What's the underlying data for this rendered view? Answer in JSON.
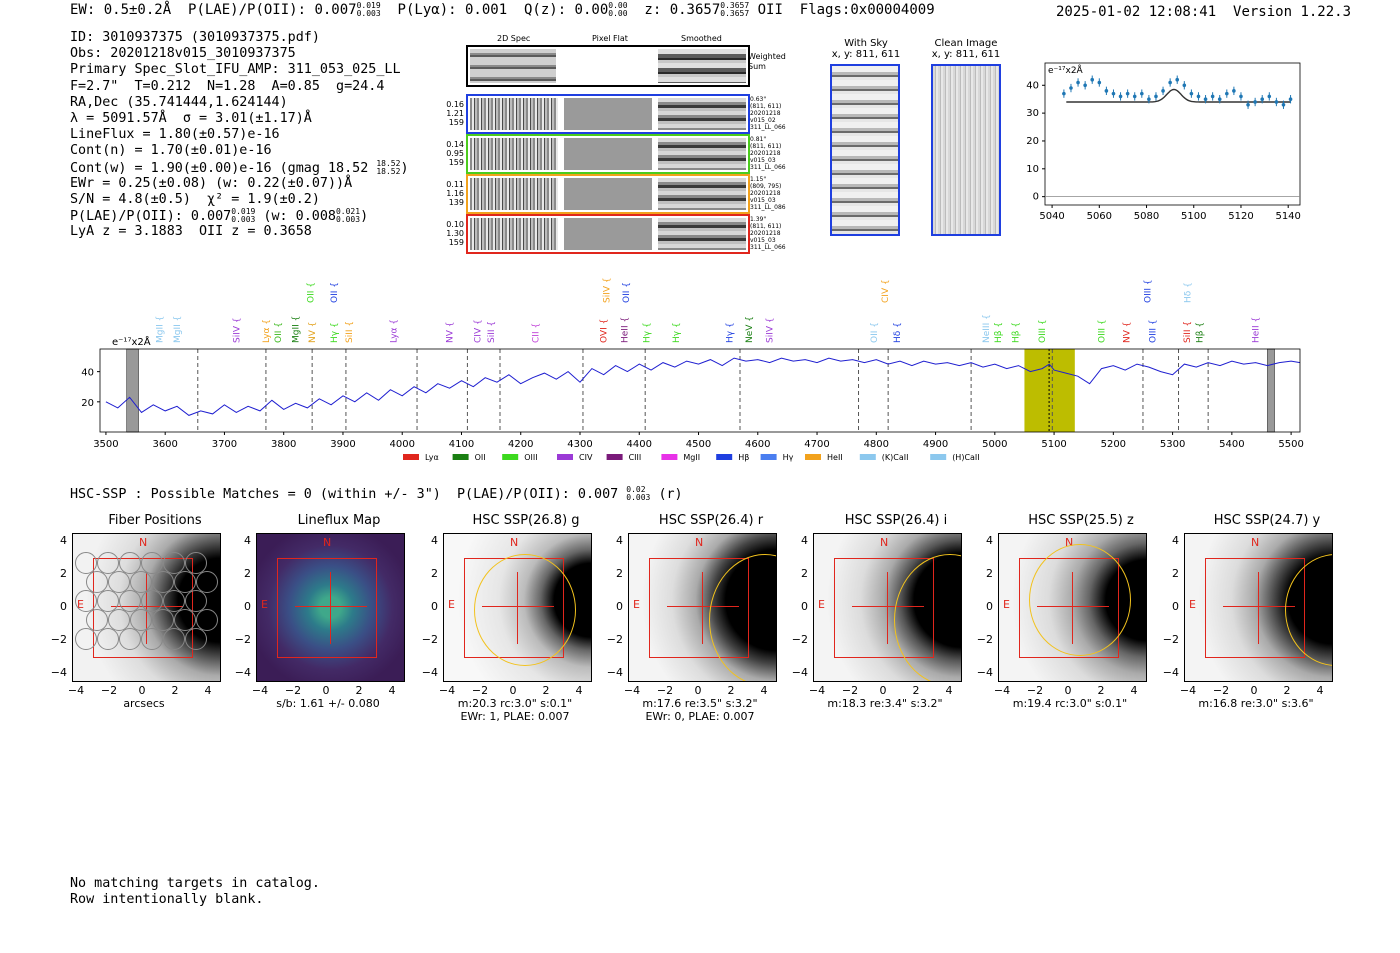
{
  "header": {
    "ew": "EW: 0.5±0.2Å",
    "plae_label": "P(LAE)/P(OII): 0.007",
    "plae_hi": "0.019",
    "plae_lo": "0.003",
    "plya": "P(Lyα): 0.001",
    "qz_label": "Q(z): 0.00",
    "qz_hi": "0.00",
    "qz_lo": "0.00",
    "z_label": "z: 0.3657",
    "z_hi": "0.3657",
    "z_lo": "0.3657",
    "z_line": "OII",
    "flags": "Flags:0x00004009",
    "datetime": "2025-01-02 12:08:41",
    "version": "Version 1.22.3"
  },
  "info": {
    "id": "ID: 3010937375 (3010937375.pdf)",
    "obs": "Obs: 20201218v015_3010937375",
    "primary": "Primary Spec_Slot_IFU_AMP: 311_053_025_LL",
    "params": "F=2.7\"  T=0.212  N=1.28  A=0.85  g=24.4",
    "radec": "RA,Dec (35.741444,1.624144)",
    "lambda": "λ = 5091.57Å  σ = 3.01(±1.17)Å",
    "lineflux": "LineFlux = 1.80(±0.57)e-16",
    "contn": "Cont(n) = 1.70(±0.01)e-16",
    "contw": "Cont(w) = 1.90(±0.00)e-16 (gmag 18.52",
    "gmag_hi": "18.52",
    "gmag_lo": "18.52",
    "contw_end": ")",
    "ewr": "EWr = 0.25(±0.08) (w: 0.22(±0.07))Å",
    "sn": "S/N = 4.8(±0.5)  χ² = 1.9(±0.2)",
    "plae": "P(LAE)/P(OII): 0.007",
    "plae_hi": "0.019",
    "plae_lo": "0.003",
    "plae_w": "(w: 0.008",
    "plae_w_hi": "0.021",
    "plae_w_lo": "0.003",
    "plae_end": ")",
    "lya": "LyA z = 3.1883  OII z = 0.3658"
  },
  "cutouts": {
    "col_2d": "2D Spec",
    "col_flat": "Pixel Flat",
    "col_smooth": "Smoothed",
    "weighted_sum": "Weighted Sum",
    "rows": [
      {
        "vals": [
          "0.16",
          "1.21",
          "159"
        ],
        "notes": [
          "0.63\"",
          "(811, 611)",
          "20201218",
          "v015_02",
          "311_LL_066"
        ],
        "color": "#1f3fe0"
      },
      {
        "vals": [
          "0.14",
          "0.95",
          "159"
        ],
        "notes": [
          "0.81\"",
          "(811, 611)",
          "20201218",
          "v015_03",
          "311_LL_066"
        ],
        "color": "#4ccc1e"
      },
      {
        "vals": [
          "0.11",
          "1.16",
          "139"
        ],
        "notes": [
          "1.15\"",
          "(809, 795)",
          "20201218",
          "v015_03",
          "311_LL_086"
        ],
        "color": "#f2a21d"
      },
      {
        "vals": [
          "0.10",
          "1.30",
          "159"
        ],
        "notes": [
          "1.39\"",
          "(811, 611)",
          "20201218",
          "v015_03",
          "311_LL_066"
        ],
        "color": "#e0261d"
      }
    ],
    "with_sky": "With Sky",
    "with_sky_xy": "x, y: 811, 611",
    "clean_image": "Clean Image",
    "clean_xy": "x, y: 811, 611"
  },
  "chart_data": [
    {
      "type": "scatter",
      "title": "",
      "ylabel_unit": "e⁻¹⁷x2Å",
      "xlim": [
        5037,
        5145
      ],
      "ylim": [
        -3,
        48
      ],
      "xticks": [
        5040,
        5060,
        5080,
        5100,
        5120,
        5140
      ],
      "yticks": [
        0,
        10,
        20,
        30,
        40
      ],
      "x": [
        5045,
        5048,
        5051,
        5054,
        5057,
        5060,
        5063,
        5066,
        5069,
        5072,
        5075,
        5078,
        5081,
        5084,
        5087,
        5090,
        5093,
        5096,
        5099,
        5102,
        5105,
        5108,
        5111,
        5114,
        5117,
        5120,
        5123,
        5126,
        5129,
        5132,
        5135,
        5138,
        5141
      ],
      "y": [
        37,
        39,
        41,
        40,
        42,
        41,
        38,
        37,
        36,
        37,
        36,
        37,
        35,
        36,
        38,
        41,
        42,
        40,
        37,
        36,
        35,
        36,
        35,
        37,
        38,
        36,
        33,
        34,
        35,
        36,
        34,
        33,
        35
      ],
      "model_continuum": 34.0,
      "model_peak": 38.5,
      "model_center": 5091.6,
      "model_sigma": 3.0
    },
    {
      "type": "line",
      "ylabel_unit": "e⁻¹⁷x2Å",
      "xlim": [
        3490,
        5515
      ],
      "ylim": [
        0,
        55
      ],
      "xticks": [
        3500,
        3600,
        3700,
        3800,
        3900,
        4000,
        4100,
        4200,
        4300,
        4400,
        4500,
        4600,
        4700,
        4800,
        4900,
        5000,
        5100,
        5200,
        5300,
        5400,
        5500
      ],
      "yticks": [
        20,
        40
      ],
      "highlight_range": [
        5050,
        5135
      ],
      "line_center": 5091.6,
      "masked_regions": [
        [
          3535,
          3555
        ],
        [
          5460,
          5472
        ]
      ],
      "spectrum": [
        [
          3500,
          20
        ],
        [
          3520,
          16
        ],
        [
          3540,
          23
        ],
        [
          3560,
          13
        ],
        [
          3580,
          18
        ],
        [
          3600,
          14
        ],
        [
          3620,
          17
        ],
        [
          3640,
          11
        ],
        [
          3660,
          14
        ],
        [
          3680,
          12
        ],
        [
          3700,
          18
        ],
        [
          3720,
          13
        ],
        [
          3740,
          17
        ],
        [
          3760,
          14
        ],
        [
          3780,
          21
        ],
        [
          3800,
          15
        ],
        [
          3820,
          19
        ],
        [
          3840,
          16
        ],
        [
          3860,
          22
        ],
        [
          3880,
          18
        ],
        [
          3900,
          24
        ],
        [
          3920,
          20
        ],
        [
          3940,
          26
        ],
        [
          3960,
          21
        ],
        [
          3980,
          28
        ],
        [
          4000,
          24
        ],
        [
          4020,
          30
        ],
        [
          4040,
          26
        ],
        [
          4060,
          32
        ],
        [
          4080,
          29
        ],
        [
          4100,
          34
        ],
        [
          4120,
          30
        ],
        [
          4140,
          36
        ],
        [
          4160,
          33
        ],
        [
          4180,
          38
        ],
        [
          4200,
          32
        ],
        [
          4220,
          36
        ],
        [
          4240,
          39
        ],
        [
          4260,
          35
        ],
        [
          4280,
          40
        ],
        [
          4300,
          33
        ],
        [
          4320,
          42
        ],
        [
          4340,
          38
        ],
        [
          4360,
          44
        ],
        [
          4380,
          40
        ],
        [
          4400,
          45
        ],
        [
          4420,
          41
        ],
        [
          4440,
          46
        ],
        [
          4460,
          43
        ],
        [
          4480,
          47
        ],
        [
          4500,
          45
        ],
        [
          4520,
          48
        ],
        [
          4540,
          44
        ],
        [
          4560,
          49
        ],
        [
          4580,
          47
        ],
        [
          4600,
          48
        ],
        [
          4620,
          46
        ],
        [
          4640,
          49
        ],
        [
          4660,
          47
        ],
        [
          4680,
          48
        ],
        [
          4700,
          46
        ],
        [
          4720,
          49
        ],
        [
          4740,
          47
        ],
        [
          4760,
          48
        ],
        [
          4780,
          46
        ],
        [
          4800,
          48
        ],
        [
          4820,
          45
        ],
        [
          4840,
          47
        ],
        [
          4860,
          44
        ],
        [
          4880,
          47
        ],
        [
          4900,
          45
        ],
        [
          4920,
          46
        ],
        [
          4940,
          44
        ],
        [
          4960,
          46
        ],
        [
          4980,
          43
        ],
        [
          5000,
          45
        ],
        [
          5020,
          42
        ],
        [
          5040,
          44
        ],
        [
          5060,
          40
        ],
        [
          5080,
          42
        ],
        [
          5092,
          45
        ],
        [
          5100,
          41
        ],
        [
          5120,
          39
        ],
        [
          5140,
          37
        ],
        [
          5160,
          32
        ],
        [
          5180,
          42
        ],
        [
          5200,
          44
        ],
        [
          5220,
          41
        ],
        [
          5240,
          45
        ],
        [
          5260,
          43
        ],
        [
          5280,
          40
        ],
        [
          5300,
          38
        ],
        [
          5320,
          45
        ],
        [
          5340,
          43
        ],
        [
          5360,
          46
        ],
        [
          5380,
          44
        ],
        [
          5400,
          47
        ],
        [
          5420,
          45
        ],
        [
          5440,
          46
        ],
        [
          5460,
          44
        ],
        [
          5480,
          46
        ],
        [
          5500,
          47
        ],
        [
          5515,
          46
        ]
      ],
      "redshift_lines": [
        {
          "label": "MgII",
          "x": 3590,
          "color": "#8cc8ee",
          "style": "dashed"
        },
        {
          "label": "MgII",
          "x": 3620,
          "color": "#8cc8ee",
          "style": "dashed"
        },
        {
          "label": "SiIV",
          "x": 3720,
          "color": "#9b3ad6",
          "style": "solid"
        },
        {
          "label": "Lyα",
          "x": 3770,
          "color": "#f2a21d",
          "style": "solid"
        },
        {
          "label": "OII",
          "x": 3790,
          "color": "#3cb91e",
          "style": "solid"
        },
        {
          "label": "MgII",
          "x": 3820,
          "color": "#1a7f12",
          "style": "solid"
        },
        {
          "label": "NV",
          "x": 3848,
          "color": "#e2a21d",
          "style": "solid"
        },
        {
          "label": "Hγ",
          "x": 3885,
          "color": "#3cd91e",
          "style": "solid"
        },
        {
          "label": "SiII",
          "x": 3910,
          "color": "#f2a21d",
          "style": "solid"
        },
        {
          "label": "Lyα",
          "x": 3985,
          "color": "#9b3ad6",
          "style": "solid"
        },
        {
          "label": "NV",
          "x": 4080,
          "color": "#9b3ad6",
          "style": "solid"
        },
        {
          "label": "CIV",
          "x": 4127,
          "color": "#9b3ad6",
          "style": "solid"
        },
        {
          "label": "SiII",
          "x": 4150,
          "color": "#9b3ad6",
          "style": "solid"
        },
        {
          "label": "CII",
          "x": 4225,
          "color": "#c040d8",
          "style": "solid"
        },
        {
          "label": "OVI",
          "x": 4340,
          "color": "#e0261d",
          "style": "solid"
        },
        {
          "label": "HeII",
          "x": 4375,
          "color": "#7a1a7a",
          "style": "solid"
        },
        {
          "label": "Hγ",
          "x": 4412,
          "color": "#3cd91e",
          "style": "solid"
        },
        {
          "label": "Hγ",
          "x": 4462,
          "color": "#3cd91e",
          "style": "solid"
        },
        {
          "label": "Hγ",
          "x": 4552,
          "color": "#1f3fe0",
          "style": "solid"
        },
        {
          "label": "NeV",
          "x": 4585,
          "color": "#1a7f12",
          "style": "solid"
        },
        {
          "label": "SiIV",
          "x": 4620,
          "color": "#9b3ad6",
          "style": "solid"
        },
        {
          "label": "OII",
          "x": 4796,
          "color": "#8cc8ee",
          "style": "dashed"
        },
        {
          "label": "Hδ",
          "x": 4835,
          "color": "#1f3fe0",
          "style": "dashed"
        },
        {
          "label": "NeIII",
          "x": 4985,
          "color": "#8cc8ee",
          "style": "solid"
        },
        {
          "label": "Hβ",
          "x": 5005,
          "color": "#3cd91e",
          "style": "solid"
        },
        {
          "label": "Hβ",
          "x": 5035,
          "color": "#3cd91e",
          "style": "solid"
        },
        {
          "label": "OIII",
          "x": 5080,
          "color": "#3cd91e",
          "style": "solid"
        },
        {
          "label": "OIII",
          "x": 5180,
          "color": "#3cd91e",
          "style": "solid"
        },
        {
          "label": "NV",
          "x": 5222,
          "color": "#e0261d",
          "style": "solid"
        },
        {
          "label": "OIII",
          "x": 5266,
          "color": "#1f3fe0",
          "style": "solid"
        },
        {
          "label": "SiII",
          "x": 5324,
          "color": "#e0261d",
          "style": "solid"
        },
        {
          "label": "Hβ",
          "x": 5345,
          "color": "#1a7f12",
          "style": "solid"
        },
        {
          "label": "HeII",
          "x": 5440,
          "color": "#9b3ad6",
          "style": "solid"
        }
      ],
      "upper_lines": [
        {
          "label": "OII",
          "x": 3845,
          "color": "#3cd91e"
        },
        {
          "label": "OII",
          "x": 3885,
          "color": "#1f3fe0"
        },
        {
          "label": "SiIV",
          "x": 4345,
          "color": "#f2a21d"
        },
        {
          "label": "OII",
          "x": 4378,
          "color": "#1f3fe0"
        },
        {
          "label": "CIV",
          "x": 4815,
          "color": "#f2a21d"
        },
        {
          "label": "OIII",
          "x": 5258,
          "color": "#1f3fe0"
        },
        {
          "label": "Hδ",
          "x": 5325,
          "color": "#8cc8ee"
        }
      ],
      "obs_lines": [
        3655,
        3770,
        3848,
        3905,
        4025,
        4110,
        4165,
        4305,
        4410,
        4570,
        4770,
        4820,
        4960,
        5097,
        5250,
        5310,
        5360
      ],
      "legend": [
        {
          "label": "Lyα",
          "color": "#e0261d"
        },
        {
          "label": "OII",
          "color": "#1a7f12"
        },
        {
          "label": "OIII",
          "color": "#3cd91e"
        },
        {
          "label": "CIV",
          "color": "#9b3ad6"
        },
        {
          "label": "CIII",
          "color": "#7a1a7a"
        },
        {
          "label": "MgII",
          "color": "#e832e8"
        },
        {
          "label": "Hβ",
          "color": "#1f3fe0"
        },
        {
          "label": "Hγ",
          "color": "#4a7ef0"
        },
        {
          "label": "HeII",
          "color": "#f2a21d"
        },
        {
          "label": "(K)CaII",
          "color": "#8cc8ee"
        },
        {
          "label": "(H)CaII",
          "color": "#8cc8ee"
        }
      ]
    }
  ],
  "hsc": {
    "line": "HSC-SSP : Possible Matches = 0 (within +/- 3\")  P(LAE)/P(OII): 0.007",
    "hi": "0.02",
    "lo": "0.003",
    "band": "(r)",
    "panels": [
      {
        "title": "Fiber Positions",
        "caption1": "arcsecs",
        "caption2": ""
      },
      {
        "title": "Lineflux Map",
        "caption1": "s/b: 1.61 +/- 0.080",
        "caption2": ""
      },
      {
        "title": "HSC SSP(26.8) g",
        "caption1": "m:20.3 rc:3.0\"  s:0.1\"",
        "caption2": "EWr: 1, PLAE: 0.007"
      },
      {
        "title": "HSC SSP(26.4) r",
        "caption1": "m:17.6  re:3.5\"  s:3.2\"",
        "caption2": "EWr: 0, PLAE: 0.007"
      },
      {
        "title": "HSC SSP(26.4) i",
        "caption1": "m:18.3  re:3.4\"  s:3.2\"",
        "caption2": ""
      },
      {
        "title": "HSC SSP(25.5) z",
        "caption1": "m:19.4 rc:3.0\"  s:0.1\"",
        "caption2": ""
      },
      {
        "title": "HSC SSP(24.7) y",
        "caption1": "m:16.8  re:3.0\"  s:3.6\"",
        "caption2": ""
      }
    ],
    "compass_n": "N",
    "compass_e": "E",
    "axis_ticks": [
      "4",
      "2",
      "0",
      "−2",
      "−4"
    ],
    "xaxis_ticks": [
      "−4",
      "−2",
      "0",
      "2",
      "4"
    ]
  },
  "footer": {
    "line1": "No matching targets in catalog.",
    "line2": "Row intentionally blank."
  }
}
